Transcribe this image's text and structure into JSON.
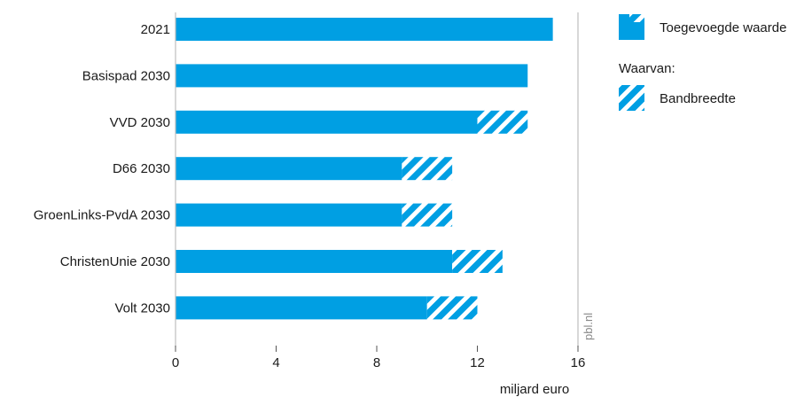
{
  "chart_data": {
    "type": "bar",
    "orientation": "horizontal",
    "stacked": true,
    "categories": [
      "2021",
      "Basispad 2030",
      "VVD 2030",
      "D66 2030",
      "GroenLinks-PvdA 2030",
      "ChristenUnie 2030",
      "Volt 2030"
    ],
    "series": [
      {
        "name": "Toegevoegde waarde",
        "values": [
          15,
          14,
          12,
          9,
          9,
          11,
          10
        ],
        "pattern": "solid"
      },
      {
        "name": "Bandbreedte",
        "values": [
          0,
          0,
          2,
          2,
          2,
          2,
          2
        ],
        "pattern": "hatched"
      }
    ],
    "xlabel": "miljard euro",
    "xlim": [
      0,
      16
    ],
    "xticks": [
      "0",
      "4",
      "8",
      "12",
      "16"
    ],
    "grid": false,
    "legend_position": "top-right",
    "legend": {
      "main": "Toegevoegde waarde",
      "subheading": "Waarvan:",
      "sub": "Bandbreedte"
    },
    "credit": "pbl.nl",
    "colors": {
      "bar": "#009fe3",
      "axis": "#bdbdbd",
      "text": "#1a1a1a"
    }
  }
}
